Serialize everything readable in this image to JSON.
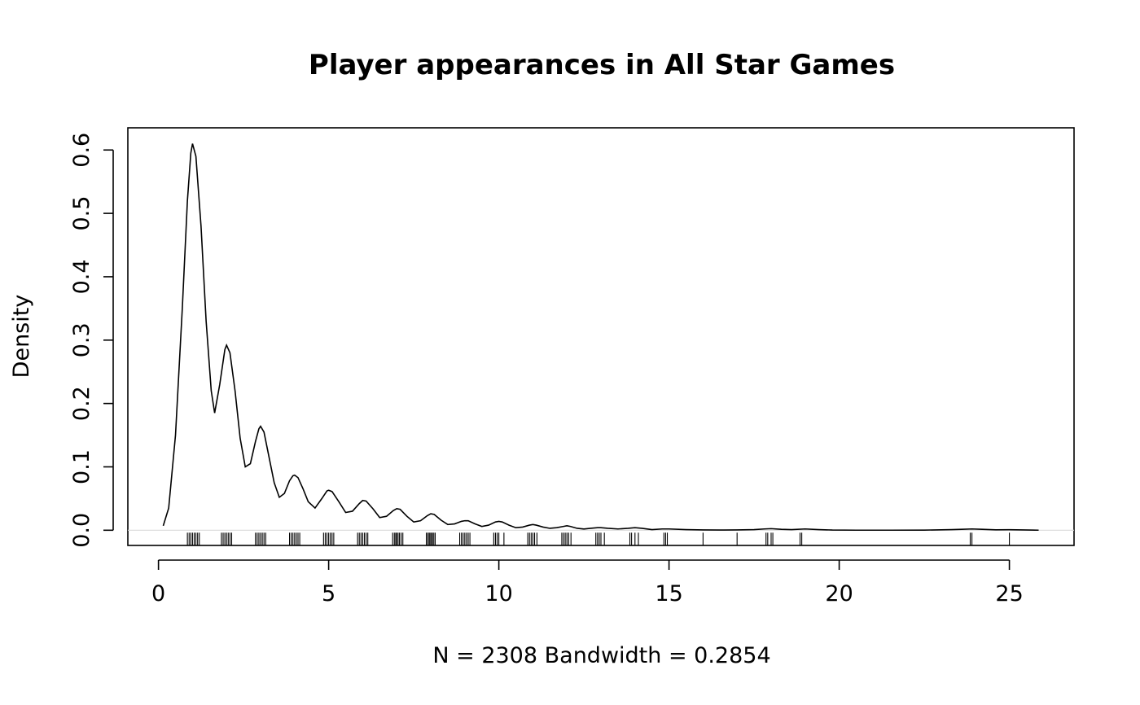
{
  "chart_data": {
    "type": "line",
    "title": "Player appearances in All Star Games",
    "xlabel": "N = 2308   Bandwidth = 0.2854",
    "ylabel": "Density",
    "xlim": [
      -0.9,
      26.9
    ],
    "ylim": [
      -0.024,
      0.635
    ],
    "x_ticks": [
      0,
      5,
      10,
      15,
      20,
      25
    ],
    "y_ticks": [
      0.0,
      0.1,
      0.2,
      0.3,
      0.4,
      0.5,
      0.6
    ],
    "x_tick_labels": [
      "0",
      "5",
      "10",
      "15",
      "20",
      "25"
    ],
    "y_tick_labels": [
      "0.0",
      "0.1",
      "0.2",
      "0.3",
      "0.4",
      "0.5",
      "0.6"
    ],
    "grid": false,
    "series": [
      {
        "x": [
          0.14,
          0.3,
          0.5,
          0.7,
          0.85,
          0.95,
          1.0,
          1.1,
          1.25,
          1.4,
          1.55,
          1.65,
          1.8,
          1.95,
          2.0,
          2.1,
          2.25,
          2.4,
          2.55,
          2.7,
          2.85,
          2.95,
          3.0,
          3.1,
          3.25,
          3.4,
          3.55,
          3.7,
          3.85,
          3.95,
          4.0,
          4.1,
          4.25,
          4.4,
          4.6,
          4.8,
          4.95,
          5.0,
          5.1,
          5.3,
          5.5,
          5.7,
          5.9,
          6.0,
          6.1,
          6.3,
          6.5,
          6.7,
          6.9,
          7.0,
          7.1,
          7.3,
          7.5,
          7.7,
          7.9,
          8.0,
          8.1,
          8.3,
          8.5,
          8.7,
          8.9,
          9.0,
          9.1,
          9.3,
          9.5,
          9.7,
          9.9,
          10.0,
          10.1,
          10.3,
          10.5,
          10.7,
          10.9,
          11.0,
          11.1,
          11.3,
          11.5,
          11.7,
          11.9,
          12.0,
          12.1,
          12.3,
          12.5,
          12.7,
          12.9,
          13.0,
          13.2,
          13.5,
          13.8,
          14.0,
          14.2,
          14.5,
          14.8,
          15.0,
          15.5,
          16.0,
          16.5,
          17.0,
          17.5,
          17.8,
          18.0,
          18.3,
          18.6,
          19.0,
          19.4,
          19.8,
          20.5,
          21.5,
          22.5,
          23.3,
          23.6,
          23.9,
          24.2,
          24.6,
          25.0,
          25.4,
          25.86
        ],
        "y": [
          0.007,
          0.035,
          0.15,
          0.35,
          0.52,
          0.595,
          0.61,
          0.59,
          0.48,
          0.33,
          0.22,
          0.185,
          0.23,
          0.285,
          0.292,
          0.28,
          0.22,
          0.145,
          0.1,
          0.105,
          0.14,
          0.16,
          0.164,
          0.155,
          0.115,
          0.075,
          0.052,
          0.058,
          0.078,
          0.086,
          0.087,
          0.083,
          0.065,
          0.045,
          0.035,
          0.05,
          0.062,
          0.063,
          0.061,
          0.045,
          0.028,
          0.03,
          0.042,
          0.047,
          0.046,
          0.034,
          0.02,
          0.022,
          0.031,
          0.034,
          0.033,
          0.022,
          0.013,
          0.015,
          0.023,
          0.026,
          0.025,
          0.016,
          0.009,
          0.01,
          0.014,
          0.015,
          0.015,
          0.01,
          0.006,
          0.008,
          0.013,
          0.014,
          0.013,
          0.008,
          0.004,
          0.005,
          0.008,
          0.009,
          0.008,
          0.005,
          0.003,
          0.004,
          0.006,
          0.007,
          0.006,
          0.003,
          0.002,
          0.003,
          0.004,
          0.004,
          0.003,
          0.002,
          0.003,
          0.004,
          0.003,
          0.001,
          0.002,
          0.002,
          0.001,
          0.0005,
          0.0003,
          0.0005,
          0.001,
          0.002,
          0.0025,
          0.0015,
          0.001,
          0.002,
          0.001,
          0.0003,
          0.0001,
          0.0001,
          0.0002,
          0.001,
          0.0015,
          0.002,
          0.0015,
          0.0007,
          0.0008,
          0.0005,
          0.0001
        ]
      }
    ],
    "rug": [
      0.85,
      0.9,
      0.95,
      1.0,
      1.05,
      1.1,
      1.15,
      1.2,
      1.85,
      1.9,
      1.95,
      2.0,
      2.05,
      2.1,
      2.15,
      2.85,
      2.9,
      2.95,
      3.0,
      3.05,
      3.1,
      3.15,
      3.85,
      3.9,
      3.95,
      4.0,
      4.05,
      4.1,
      4.15,
      4.85,
      4.9,
      4.95,
      5.0,
      5.05,
      5.1,
      5.15,
      5.85,
      5.9,
      5.95,
      6.0,
      6.05,
      6.1,
      6.15,
      6.88,
      6.93,
      6.97,
      7.0,
      7.04,
      7.08,
      7.13,
      7.18,
      7.87,
      7.91,
      7.95,
      7.98,
      8.02,
      8.05,
      8.09,
      8.13,
      8.85,
      8.9,
      8.95,
      9.0,
      9.05,
      9.1,
      9.15,
      9.85,
      9.9,
      9.95,
      10.0,
      10.15,
      10.85,
      10.9,
      10.95,
      11.0,
      11.05,
      11.12,
      11.85,
      11.9,
      11.95,
      12.0,
      12.05,
      12.12,
      12.85,
      12.9,
      12.95,
      13.0,
      13.1,
      13.85,
      13.9,
      14.0,
      14.1,
      14.85,
      14.9,
      14.95,
      16.0,
      17.0,
      17.85,
      17.9,
      18.0,
      18.05,
      18.85,
      18.9,
      23.85,
      23.9,
      25.0
    ]
  }
}
